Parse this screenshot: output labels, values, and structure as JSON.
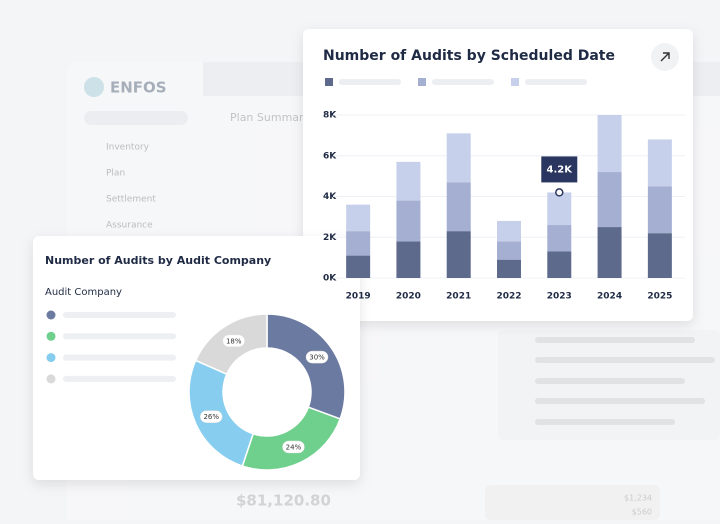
{
  "app": {
    "brand": "ENFOS",
    "menu": [
      "Inventory",
      "Plan",
      "Settlement",
      "Assurance"
    ],
    "section": "Plan Summary",
    "total": "$81,120.80",
    "amounts": [
      "$1,234",
      "$560"
    ]
  },
  "chart_data": [
    {
      "type": "stacked-bar",
      "title": "Number of Audits by Scheduled Date",
      "categories": [
        "2019",
        "2020",
        "2021",
        "2022",
        "2023",
        "2024",
        "2025"
      ],
      "series": [
        {
          "color": "#5d6a8b",
          "values": [
            1100,
            1800,
            2300,
            900,
            1300,
            2500,
            2200
          ]
        },
        {
          "color": "#a4afd2",
          "values": [
            1200,
            2000,
            2400,
            900,
            1300,
            2700,
            2300
          ]
        },
        {
          "color": "#c7d0ea",
          "values": [
            1300,
            1900,
            2400,
            1000,
            1600,
            2800,
            2300
          ]
        }
      ],
      "annotation": "4.2K",
      "ylim": [
        0,
        8000
      ],
      "yticks": [
        {
          "value": 0,
          "label": "0K"
        },
        {
          "value": 2000,
          "label": "2K"
        },
        {
          "value": 4000,
          "label": "4K"
        },
        {
          "value": 6000,
          "label": "6K"
        },
        {
          "value": 8000,
          "label": "8K"
        }
      ],
      "grid": true
    },
    {
      "type": "donut",
      "title": "Number of Audits by Audit Company",
      "legend_title": "Audit Company",
      "values": [
        30,
        24,
        26,
        18
      ],
      "value_labels": [
        "30%",
        "24%",
        "26%",
        "18%"
      ],
      "colors": [
        "#6b7aa1",
        "#6fcf8c",
        "#86cdef",
        "#d9d9d9"
      ]
    }
  ]
}
